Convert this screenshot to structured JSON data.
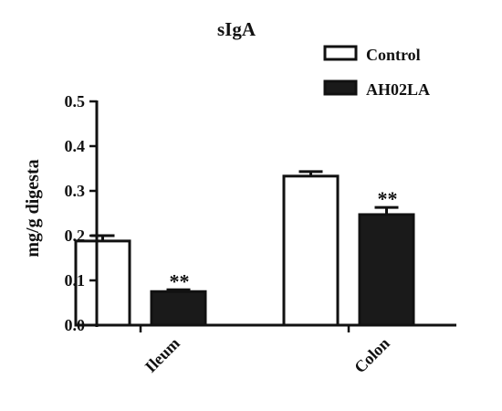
{
  "chart_data": {
    "type": "bar",
    "title": "sIgA",
    "xlabel": "",
    "ylabel": "mg/g digesta",
    "ylim": [
      0,
      0.5
    ],
    "yticks": [
      "0.0",
      "0.1",
      "0.2",
      "0.3",
      "0.4",
      "0.5"
    ],
    "categories": [
      "Ileum",
      "Colon"
    ],
    "series": [
      {
        "name": "Control",
        "values": [
          0.188,
          0.333
        ],
        "errors": [
          0.012,
          0.01
        ],
        "fill": "#ffffff",
        "significance": [
          "",
          ""
        ]
      },
      {
        "name": "AH02LA",
        "values": [
          0.075,
          0.247
        ],
        "errors": [
          0.004,
          0.016
        ],
        "fill": "#1a1a1a",
        "significance": [
          "**",
          "**"
        ]
      }
    ],
    "grid": false,
    "legend_position": "top-right",
    "colors": {
      "axis": "#111111",
      "bar_stroke": "#111111",
      "control_fill": "#ffffff",
      "treatment_fill": "#1a1a1a"
    }
  }
}
